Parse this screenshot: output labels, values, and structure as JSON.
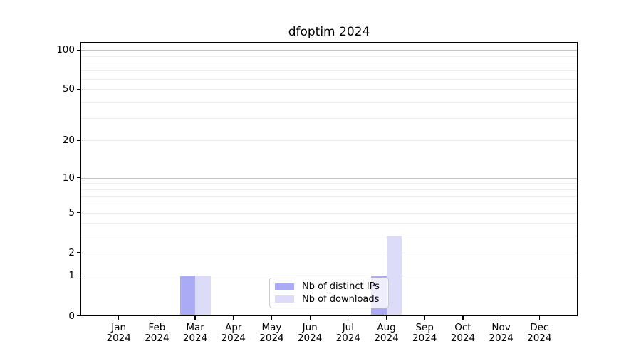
{
  "chart_data": {
    "type": "bar",
    "title": "dfoptim 2024",
    "xlabel": "",
    "ylabel": "",
    "categories": [
      "Jan 2024",
      "Feb 2024",
      "Mar 2024",
      "Apr 2024",
      "May 2024",
      "Jun 2024",
      "Jul 2024",
      "Aug 2024",
      "Sep 2024",
      "Oct 2024",
      "Nov 2024",
      "Dec 2024"
    ],
    "series": [
      {
        "name": "Nb of distinct IPs",
        "color": "#aaaaf5",
        "values": [
          0,
          0,
          1,
          0,
          0,
          0,
          0,
          1,
          0,
          0,
          0,
          0
        ]
      },
      {
        "name": "Nb of downloads",
        "color": "#dcdcf8",
        "values": [
          0,
          0,
          1,
          0,
          0,
          0,
          0,
          3,
          0,
          0,
          0,
          0
        ]
      }
    ],
    "scale": "log1p",
    "ylim": [
      0,
      115
    ],
    "y_ticks": [
      0,
      1,
      2,
      5,
      10,
      20,
      50,
      100
    ],
    "grid": true,
    "minor_gridlines": [
      2,
      3,
      4,
      5,
      6,
      7,
      8,
      9,
      20,
      30,
      40,
      50,
      60,
      70,
      80,
      90
    ],
    "major_gridlines": [
      1,
      10,
      100
    ],
    "legend_position": "lower center"
  },
  "colors": {
    "bar_distinct_ips": "#aaaaf5",
    "bar_downloads": "#dcdcf8",
    "grid_minor": "#ededed",
    "grid_major": "#c3c3c3",
    "axis": "#000000",
    "legend_border": "#cccccc"
  }
}
